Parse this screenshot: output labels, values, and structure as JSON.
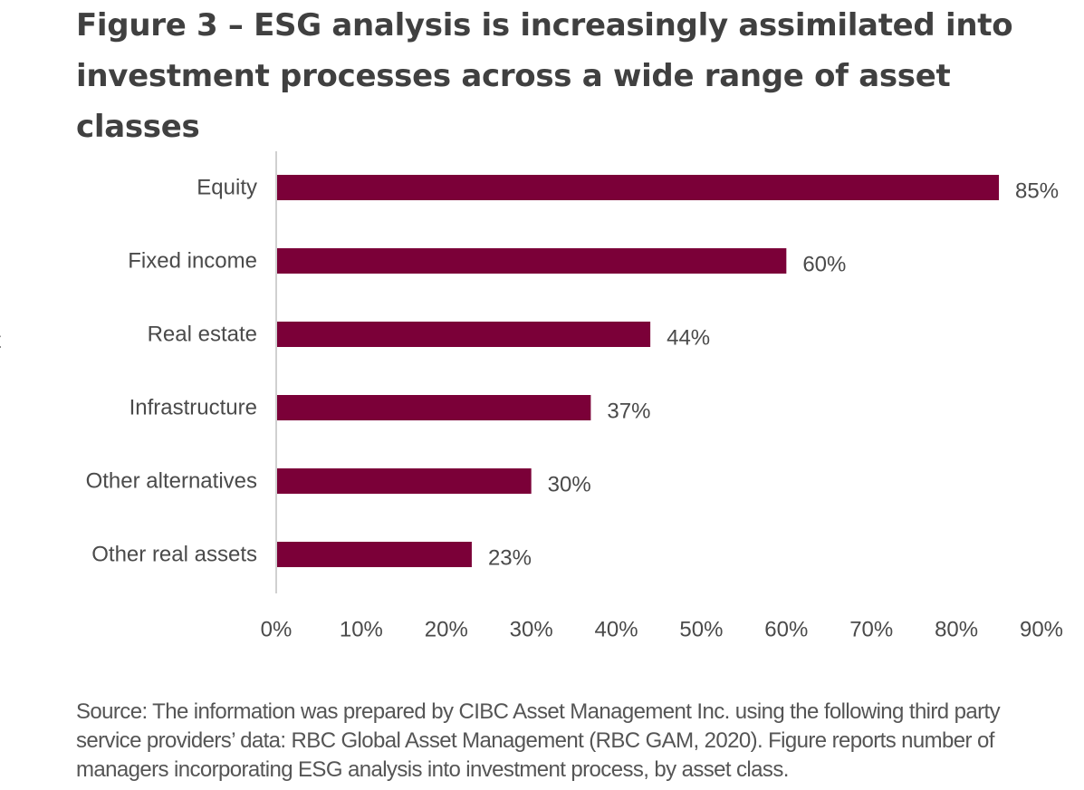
{
  "title": "Figure 3 – ESG analysis is increasingly assimilated into investment processes across a wide range of asset classes",
  "edge_glyph": "t",
  "source": "Source: The information was prepared by CIBC Asset Management Inc. using the following third party service providers’ data: RBC Global Asset Management (RBC GAM, 2020). Figure reports number of managers incorporating ESG analysis into investment process, by asset class.",
  "colors": {
    "bar": "#7b0038",
    "axis": "#d0d0d0"
  },
  "chart_data": {
    "type": "bar",
    "orientation": "horizontal",
    "categories": [
      "Equity",
      "Fixed income",
      "Real estate",
      "Infrastructure",
      "Other alternatives",
      "Other real assets"
    ],
    "values": [
      85,
      60,
      44,
      37,
      30,
      23
    ],
    "data_labels": [
      "85%",
      "60%",
      "44%",
      "37%",
      "30%",
      "23%"
    ],
    "x_ticks": [
      "0%",
      "10%",
      "20%",
      "30%",
      "40%",
      "50%",
      "60%",
      "70%",
      "80%",
      "90%"
    ],
    "xlim": [
      0,
      90
    ],
    "xlabel": "",
    "ylabel": "",
    "grid": false,
    "legend": "none"
  }
}
